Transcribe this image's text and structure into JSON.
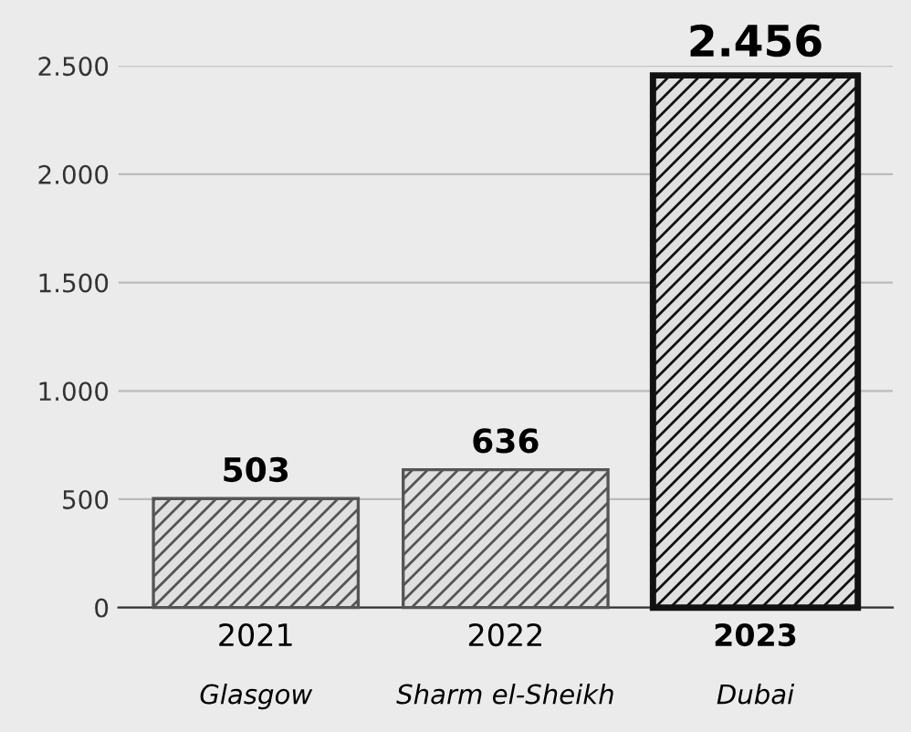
{
  "chart_data": {
    "type": "bar",
    "categories": [
      "2021\nGlasgow",
      "2022\nSharm el-Sheikh",
      "2023\nDubai"
    ],
    "values": [
      503,
      636,
      2456
    ],
    "colors": [
      "#555555",
      "#555555",
      "#111111"
    ],
    "value_labels": [
      "503",
      "636",
      "2.456"
    ],
    "ylim": [
      0,
      2500
    ],
    "yticks": [
      {
        "value": 0,
        "label": "0"
      },
      {
        "value": 500,
        "label": "500"
      },
      {
        "value": 1000,
        "label": "1.000"
      },
      {
        "value": 1500,
        "label": "1.500"
      },
      {
        "value": 2000,
        "label": "2.000"
      },
      {
        "value": 2500,
        "label": "2.500"
      }
    ],
    "grid": "y"
  }
}
